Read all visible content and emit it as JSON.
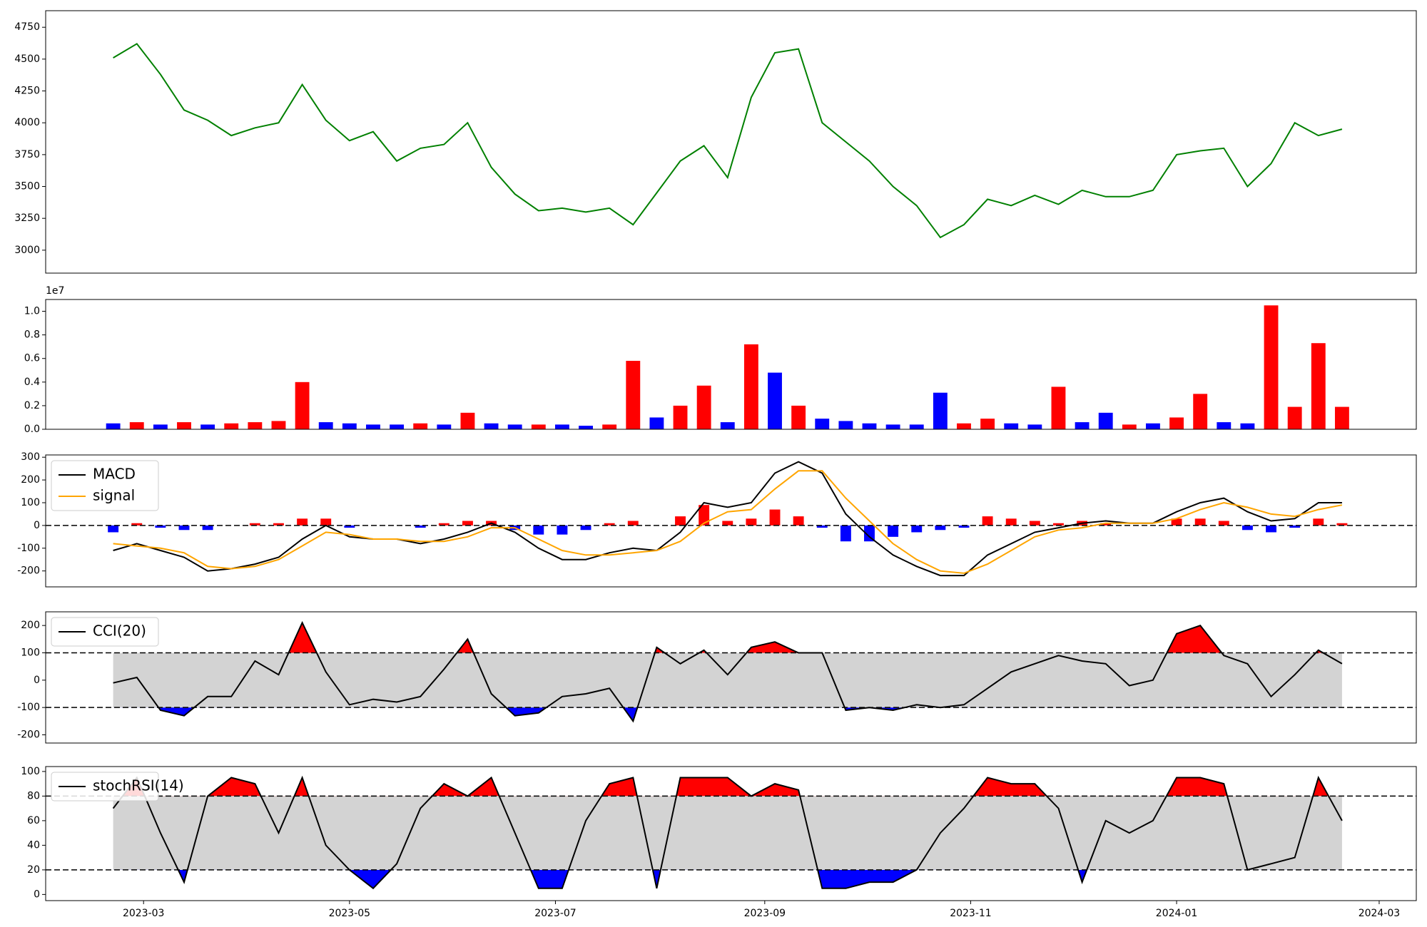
{
  "chart_data": {
    "type": "panels",
    "x": [
      "2023-02-20",
      "2023-02-27",
      "2023-03-06",
      "2023-03-13",
      "2023-03-20",
      "2023-03-27",
      "2023-04-03",
      "2023-04-10",
      "2023-04-17",
      "2023-04-24",
      "2023-05-01",
      "2023-05-08",
      "2023-05-15",
      "2023-05-22",
      "2023-05-29",
      "2023-06-05",
      "2023-06-12",
      "2023-06-19",
      "2023-06-26",
      "2023-07-03",
      "2023-07-10",
      "2023-07-17",
      "2023-07-24",
      "2023-07-31",
      "2023-08-07",
      "2023-08-14",
      "2023-08-21",
      "2023-08-28",
      "2023-09-04",
      "2023-09-11",
      "2023-09-18",
      "2023-09-25",
      "2023-10-02",
      "2023-10-09",
      "2023-10-16",
      "2023-10-23",
      "2023-10-30",
      "2023-11-06",
      "2023-11-13",
      "2023-11-20",
      "2023-11-27",
      "2023-12-04",
      "2023-12-11",
      "2023-12-18",
      "2023-12-25",
      "2024-01-01",
      "2024-01-08",
      "2024-01-15",
      "2024-01-22",
      "2024-01-29",
      "2024-02-05",
      "2024-02-12",
      "2024-02-19"
    ],
    "xlim": [
      "2023-01-31",
      "2024-03-12"
    ],
    "xticks": [
      {
        "value": "2023-03-01",
        "label": "2023-03"
      },
      {
        "value": "2023-05-01",
        "label": "2023-05"
      },
      {
        "value": "2023-07-01",
        "label": "2023-07"
      },
      {
        "value": "2023-09-01",
        "label": "2023-09"
      },
      {
        "value": "2023-11-01",
        "label": "2023-11"
      },
      {
        "value": "2024-01-01",
        "label": "2024-01"
      },
      {
        "value": "2024-03-01",
        "label": "2024-03"
      }
    ],
    "panels": [
      {
        "type": "line",
        "series": [
          {
            "color": "green",
            "values": [
              4510,
              4620,
              4380,
              4100,
              4020,
              3900,
              3960,
              4000,
              4300,
              4020,
              3860,
              3930,
              3700,
              3800,
              3830,
              4000,
              3650,
              3440,
              3310,
              3330,
              3300,
              3330,
              3200,
              3450,
              3700,
              3820,
              3570,
              4200,
              4550,
              4580,
              4000,
              3850,
              3700,
              3500,
              3350,
              3100,
              3200,
              3400,
              3350,
              3430,
              3360,
              3470,
              3420,
              3420,
              3470,
              3750,
              3780,
              3800,
              3500,
              3680,
              4000,
              3900,
              3950
            ]
          }
        ],
        "ylim": [
          2820,
          4880
        ],
        "yticks": [
          3000,
          3250,
          3500,
          3750,
          4000,
          4250,
          4500,
          4750
        ]
      },
      {
        "type": "bar",
        "offset_text": "1e7",
        "values": [
          0.05,
          0.06,
          0.04,
          0.06,
          0.04,
          0.05,
          0.06,
          0.07,
          0.4,
          0.06,
          0.05,
          0.04,
          0.04,
          0.05,
          0.04,
          0.14,
          0.05,
          0.04,
          0.04,
          0.04,
          0.03,
          0.04,
          0.58,
          0.1,
          0.2,
          0.37,
          0.06,
          0.72,
          0.48,
          0.2,
          0.09,
          0.07,
          0.05,
          0.04,
          0.04,
          0.31,
          0.05,
          0.09,
          0.05,
          0.04,
          0.36,
          0.06,
          0.14,
          0.04,
          0.05,
          0.1,
          0.3,
          0.06,
          0.05,
          1.05,
          0.19,
          0.73,
          0.19
        ],
        "colors": [
          "blue",
          "red",
          "blue",
          "red",
          "blue",
          "red",
          "red",
          "red",
          "red",
          "blue",
          "blue",
          "blue",
          "blue",
          "red",
          "blue",
          "red",
          "blue",
          "blue",
          "red",
          "blue",
          "blue",
          "red",
          "red",
          "blue",
          "red",
          "red",
          "blue",
          "red",
          "blue",
          "red",
          "blue",
          "blue",
          "blue",
          "blue",
          "blue",
          "blue",
          "red",
          "red",
          "blue",
          "blue",
          "red",
          "blue",
          "blue",
          "red",
          "blue",
          "red",
          "red",
          "blue",
          "blue",
          "red",
          "red",
          "red",
          "red"
        ],
        "ylim": [
          0,
          1.1
        ],
        "yticks": [
          {
            "value": 0,
            "label": "0.0"
          },
          0.2,
          0.4,
          0.6,
          0.8,
          {
            "value": 1,
            "label": "1.0"
          }
        ]
      },
      {
        "type": "macd",
        "legend": "upper left",
        "series": [
          {
            "name": "MACD",
            "color": "black",
            "values": [
              -110,
              -80,
              -110,
              -140,
              -200,
              -190,
              -170,
              -140,
              -60,
              0,
              -50,
              -60,
              -60,
              -80,
              -60,
              -30,
              10,
              -30,
              -100,
              -150,
              -150,
              -120,
              -100,
              -110,
              -30,
              100,
              80,
              100,
              230,
              280,
              230,
              50,
              -50,
              -130,
              -180,
              -220,
              -220,
              -130,
              -80,
              -30,
              -10,
              10,
              20,
              10,
              10,
              60,
              100,
              120,
              60,
              20,
              30,
              100,
              100
            ]
          },
          {
            "name": "signal",
            "color": "orange",
            "values": [
              -80,
              -90,
              -100,
              -120,
              -180,
              -190,
              -180,
              -150,
              -90,
              -30,
              -40,
              -60,
              -60,
              -70,
              -70,
              -50,
              -10,
              -10,
              -60,
              -110,
              -130,
              -130,
              -120,
              -110,
              -70,
              10,
              60,
              70,
              160,
              240,
              240,
              120,
              20,
              -80,
              -150,
              -200,
              -210,
              -170,
              -110,
              -50,
              -20,
              -10,
              10,
              10,
              10,
              30,
              70,
              100,
              80,
              50,
              40,
              70,
              90
            ]
          }
        ],
        "histogram": {
          "pos_color": "red",
          "neg_color": "blue",
          "values": [
            -30,
            10,
            -10,
            -20,
            -20,
            0,
            10,
            10,
            30,
            30,
            -10,
            0,
            0,
            -10,
            10,
            20,
            20,
            -20,
            -40,
            -40,
            -20,
            10,
            20,
            0,
            40,
            90,
            20,
            30,
            70,
            40,
            -10,
            -70,
            -70,
            -50,
            -30,
            -20,
            -10,
            40,
            30,
            20,
            10,
            20,
            10,
            0,
            0,
            30,
            30,
            20,
            -20,
            -30,
            -10,
            30,
            10
          ]
        },
        "zero_line": 0,
        "ylim": [
          -270,
          310
        ],
        "yticks": [
          -200,
          -100,
          0,
          100,
          200,
          300
        ]
      },
      {
        "type": "oscillator",
        "legend": "upper left",
        "series": [
          {
            "name": "CCI(20)",
            "color": "black",
            "values": [
              -10,
              10,
              -110,
              -130,
              -60,
              -60,
              70,
              20,
              210,
              30,
              -90,
              -70,
              -80,
              -60,
              40,
              150,
              -50,
              -130,
              -120,
              -60,
              -50,
              -30,
              -150,
              120,
              60,
              110,
              20,
              120,
              140,
              100,
              100,
              -110,
              -100,
              -110,
              -90,
              -100,
              -90,
              -30,
              30,
              60,
              90,
              70,
              60,
              -20,
              0,
              170,
              200,
              90,
              60,
              -60,
              20,
              110,
              60
            ]
          }
        ],
        "levels": [
          -100,
          100
        ],
        "fill_colors": {
          "upper": "red",
          "lower": "blue",
          "band": "lightgray"
        },
        "ylim": [
          -230,
          250
        ],
        "yticks": [
          -200,
          -100,
          0,
          100,
          200
        ]
      },
      {
        "type": "oscillator",
        "legend": "upper left",
        "series": [
          {
            "name": "stochRSI(14)",
            "color": "black",
            "values": [
              70,
              95,
              50,
              10,
              80,
              95,
              90,
              50,
              95,
              40,
              20,
              5,
              25,
              70,
              90,
              80,
              95,
              50,
              5,
              5,
              60,
              90,
              95,
              5,
              95,
              95,
              95,
              80,
              90,
              85,
              5,
              5,
              10,
              10,
              20,
              50,
              70,
              95,
              90,
              90,
              70,
              10,
              60,
              50,
              60,
              95,
              95,
              90,
              20,
              25,
              30,
              95,
              60
            ]
          }
        ],
        "levels": [
          20,
          80
        ],
        "fill_colors": {
          "upper": "red",
          "lower": "blue",
          "band": "lightgray"
        },
        "ylim": [
          -5,
          104
        ],
        "yticks": [
          0,
          20,
          40,
          60,
          80,
          100
        ]
      }
    ]
  }
}
